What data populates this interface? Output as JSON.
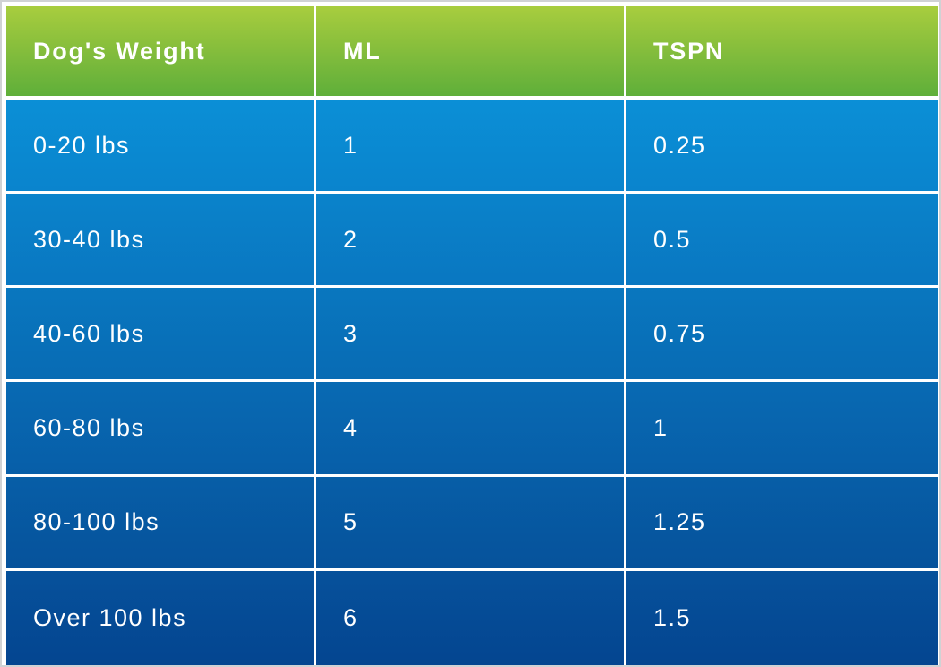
{
  "table": {
    "headers": [
      "Dog's Weight",
      "ML",
      "TSPN"
    ],
    "rows": [
      [
        "0-20 lbs",
        "1",
        "0.25"
      ],
      [
        "30-40 lbs",
        "2",
        "0.5"
      ],
      [
        "40-60 lbs",
        "3",
        "0.75"
      ],
      [
        "60-80 lbs",
        "4",
        "1"
      ],
      [
        "80-100 lbs",
        "5",
        "1.25"
      ],
      [
        "Over 100 lbs",
        "6",
        "1.5"
      ]
    ]
  },
  "colors": {
    "header_green": "#84bd3c",
    "row_blue_top": "#0b8fd6",
    "row_blue_bottom": "#044590",
    "text": "#ffffff",
    "frame_border": "#d0d2d4"
  }
}
